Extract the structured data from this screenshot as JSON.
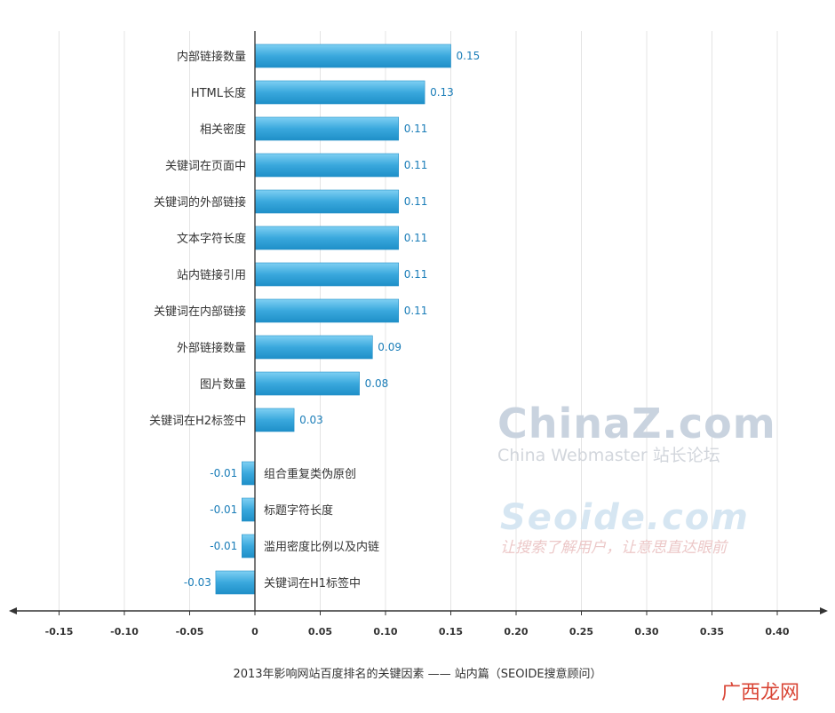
{
  "chart_data": {
    "type": "bar",
    "orientation": "horizontal",
    "categories": [
      "内部链接数量",
      "HTML长度",
      "相关密度",
      "关键词在页面中",
      "关键词的外部链接",
      "文本字符长度",
      "站内链接引用",
      "关键词在内部链接",
      "外部链接数量",
      "图片数量",
      "关键词在H2标签中",
      "组合重复类伪原创",
      "标题字符长度",
      "滥用密度比例以及内链",
      "关键词在H1标签中"
    ],
    "values": [
      0.15,
      0.13,
      0.11,
      0.11,
      0.11,
      0.11,
      0.11,
      0.11,
      0.09,
      0.08,
      0.03,
      -0.01,
      -0.01,
      -0.01,
      -0.03
    ],
    "value_labels": [
      "0.15",
      "0.13",
      "0.11",
      "0.11",
      "0.11",
      "0.11",
      "0.11",
      "0.11",
      "0.09",
      "0.08",
      "0.03",
      "-0.01",
      "-0.01",
      "-0.01",
      "-0.03"
    ],
    "xlim": [
      -0.15,
      0.4
    ],
    "x_ticks": [
      -0.15,
      -0.1,
      -0.05,
      0,
      0.05,
      0.1,
      0.15,
      0.2,
      0.25,
      0.3,
      0.35,
      0.4
    ],
    "x_tick_labels": [
      "-0.15",
      "-0.10",
      "-0.05",
      "0",
      "0.05",
      "0.10",
      "0.15",
      "0.20",
      "0.25",
      "0.30",
      "0.35",
      "0.40"
    ],
    "grid": "vertical",
    "bar_color": "#3aa8dd",
    "label_color": "#1a7db8"
  },
  "caption": "2013年影响网站百度排名的关键因素 —— 站内篇（SEOIDE搜意顾问）",
  "watermarks": {
    "china_main": "ChinaZ.com",
    "china_sub": "China Webmaster 站长论坛",
    "seoide_main": "Seoide.com",
    "seoide_sub": "让搜索了解用户，让意思直达眼前"
  },
  "site_mark": "广西龙网"
}
